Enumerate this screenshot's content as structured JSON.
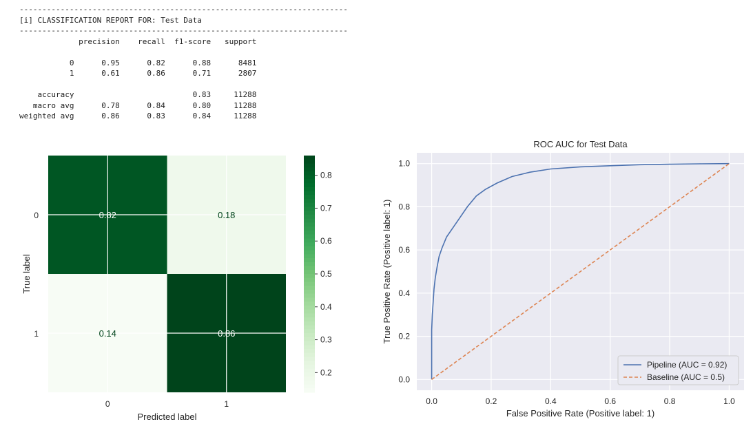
{
  "report": {
    "rule": "------------------------------------------------------------------------",
    "title": "[i] CLASSIFICATION REPORT FOR: Test Data",
    "headers": [
      "precision",
      "recall",
      "f1-score",
      "support"
    ],
    "rows": [
      {
        "label": "0",
        "precision": "0.95",
        "recall": "0.82",
        "f1": "0.88",
        "support": "8481"
      },
      {
        "label": "1",
        "precision": "0.61",
        "recall": "0.86",
        "f1": "0.71",
        "support": "2807"
      }
    ],
    "summary": [
      {
        "label": "accuracy",
        "precision": "",
        "recall": "",
        "f1": "0.83",
        "support": "11288"
      },
      {
        "label": "macro avg",
        "precision": "0.78",
        "recall": "0.84",
        "f1": "0.80",
        "support": "11288"
      },
      {
        "label": "weighted avg",
        "precision": "0.86",
        "recall": "0.83",
        "f1": "0.84",
        "support": "11288"
      }
    ]
  },
  "chart_data": [
    {
      "type": "heatmap",
      "title": "",
      "xlabel": "Predicted label",
      "ylabel": "True label",
      "x_categories": [
        "0",
        "1"
      ],
      "y_categories": [
        "0",
        "1"
      ],
      "values": [
        [
          0.82,
          0.18
        ],
        [
          0.14,
          0.86
        ]
      ],
      "value_labels": [
        [
          "0.82",
          "0.18"
        ],
        [
          "0.14",
          "0.86"
        ]
      ],
      "colormap": "Greens",
      "colorbar": {
        "range": [
          0.14,
          0.86
        ],
        "ticks": [
          0.2,
          0.3,
          0.4,
          0.5,
          0.6,
          0.7,
          0.8
        ]
      },
      "grid": true
    },
    {
      "type": "line",
      "title": "ROC AUC for Test Data",
      "xlabel": "False Positive Rate (Positive label: 1)",
      "ylabel": "True Positive Rate (Positive label: 1)",
      "xlim": [
        -0.05,
        1.05
      ],
      "ylim": [
        -0.05,
        1.05
      ],
      "xticks": [
        0.0,
        0.2,
        0.4,
        0.6,
        0.8,
        1.0
      ],
      "yticks": [
        0.0,
        0.2,
        0.4,
        0.6,
        0.8,
        1.0
      ],
      "grid": true,
      "background": "#eaeaf2",
      "legend": "bottom-right",
      "series": [
        {
          "name": "Pipeline (AUC = 0.92)",
          "color": "#4c72b0",
          "style": "solid",
          "x": [
            0,
            0,
            0.002,
            0.005,
            0.008,
            0.012,
            0.018,
            0.025,
            0.035,
            0.05,
            0.07,
            0.09,
            0.12,
            0.15,
            0.18,
            0.22,
            0.27,
            0.33,
            0.4,
            0.5,
            0.6,
            0.7,
            0.8,
            0.9,
            1.0
          ],
          "y": [
            0,
            0.23,
            0.3,
            0.36,
            0.42,
            0.47,
            0.52,
            0.57,
            0.61,
            0.66,
            0.7,
            0.74,
            0.8,
            0.85,
            0.88,
            0.91,
            0.94,
            0.96,
            0.975,
            0.985,
            0.99,
            0.995,
            0.997,
            0.999,
            1.0
          ]
        },
        {
          "name": "Baseline (AUC = 0.5)",
          "color": "#dd8452",
          "style": "dashed",
          "x": [
            0,
            1
          ],
          "y": [
            0,
            1
          ]
        }
      ]
    }
  ]
}
